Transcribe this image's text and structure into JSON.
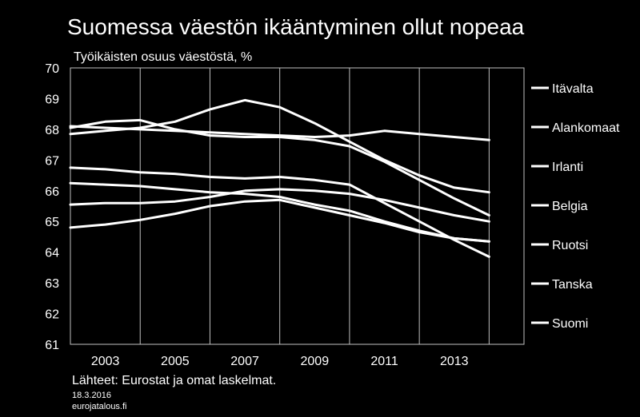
{
  "title": "Suomessa väestön ikääntyminen ollut nopeaa",
  "source": "Lähteet: Eurostat ja omat laskelmat.",
  "date": "18.3.2016",
  "site": "eurojatalous.fi",
  "colors": {
    "background": "#000000",
    "line": "#ffffff"
  },
  "chart_data": {
    "type": "line",
    "title": "Suomessa väestön ikääntyminen ollut nopeaa",
    "ylabel": "Työikäisten osuus väestöstä, %",
    "xlabel": "",
    "xlim": [
      2002,
      2015
    ],
    "ylim": [
      61,
      70
    ],
    "x": [
      2002,
      2003,
      2004,
      2005,
      2006,
      2007,
      2008,
      2009,
      2010,
      2011,
      2012,
      2013,
      2014
    ],
    "x_ticks": [
      2003,
      2005,
      2007,
      2009,
      2011,
      2013
    ],
    "y_ticks": [
      61,
      62,
      63,
      64,
      65,
      66,
      67,
      68,
      69,
      70
    ],
    "grid": "vertical",
    "legend_position": "right",
    "series": [
      {
        "name": "Itävalta",
        "values": [
          67.85,
          67.95,
          68.05,
          68.25,
          68.65,
          68.95,
          68.72,
          68.2,
          67.6,
          67.0,
          66.5,
          66.1,
          65.95
        ]
      },
      {
        "name": "Alankomaat",
        "values": [
          68.1,
          68.05,
          68.0,
          67.95,
          67.9,
          67.85,
          67.8,
          67.75,
          67.8,
          67.95,
          67.85,
          67.75,
          67.65
        ]
      },
      {
        "name": "Irlanti",
        "values": [
          68.05,
          68.25,
          68.3,
          68.0,
          67.8,
          67.75,
          67.75,
          67.65,
          67.45,
          66.95,
          66.35,
          65.75,
          65.2
        ]
      },
      {
        "name": "Belgia",
        "values": [
          66.75,
          66.7,
          66.6,
          66.55,
          66.45,
          66.4,
          66.45,
          66.35,
          66.2,
          65.6,
          65.0,
          64.4,
          63.85
        ]
      },
      {
        "name": "Ruotsi",
        "values": [
          65.55,
          65.6,
          65.6,
          65.65,
          65.8,
          66.0,
          66.05,
          66.0,
          65.9,
          65.7,
          65.45,
          65.2,
          65.0
        ]
      },
      {
        "name": "Tanska",
        "values": [
          66.25,
          66.2,
          66.15,
          66.05,
          65.95,
          65.9,
          65.8,
          65.55,
          65.35,
          65.0,
          64.7,
          64.45,
          64.35
        ]
      },
      {
        "name": "Suomi",
        "values": [
          64.8,
          64.9,
          65.05,
          65.25,
          65.5,
          65.65,
          65.7,
          65.45,
          65.2,
          64.95,
          64.65,
          64.45,
          64.35
        ]
      }
    ]
  }
}
